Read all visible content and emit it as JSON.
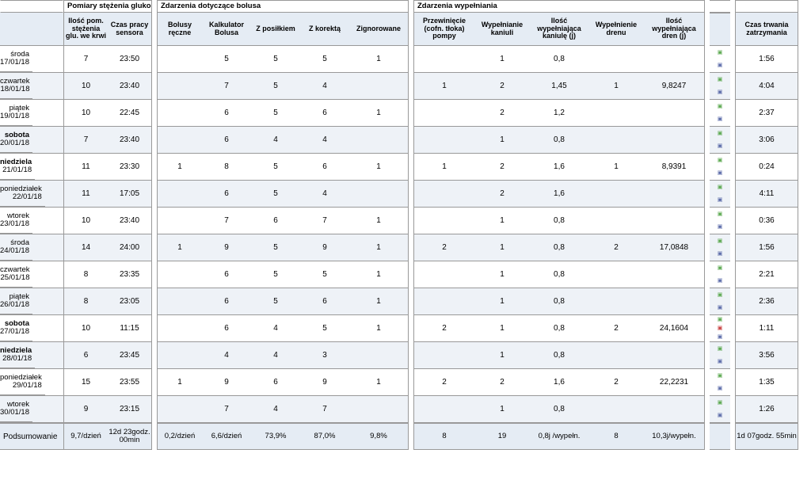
{
  "sections": {
    "glucose": {
      "title": "Pomiary stężenia glukozy",
      "cols": [
        {
          "key": "bgCount",
          "label": "Ilość pom. stężenia glu. we krwi",
          "w": 56
        },
        {
          "key": "sensor",
          "label": "Czas pracy sensora",
          "w": 56
        }
      ]
    },
    "bolus": {
      "title": "Zdarzenia dotyczące bolusa",
      "cols": [
        {
          "key": "manual",
          "label": "Bolusy ręczne",
          "w": 56
        },
        {
          "key": "calc",
          "label": "Kalkulator Bolusa",
          "w": 62
        },
        {
          "key": "meal",
          "label": "Z posiłkiem",
          "w": 62
        },
        {
          "key": "corr",
          "label": "Z korektą",
          "w": 62
        },
        {
          "key": "ign",
          "label": "Zignorowane",
          "w": 74
        }
      ]
    },
    "fill": {
      "title": "Zdarzenia wypełniania",
      "cols": [
        {
          "key": "rewind",
          "label": "Przewinięcie (cofn. tłoka) pompy",
          "w": 76
        },
        {
          "key": "can",
          "label": "Wypełnianie kaniuli",
          "w": 70
        },
        {
          "key": "canAmt",
          "label": "Ilość wypełniająca kaniulę (j)",
          "w": 74
        },
        {
          "key": "tube",
          "label": "Wypełnienie drenu",
          "w": 70
        },
        {
          "key": "tubeAmt",
          "label": "Ilość wypełniająca dren (j)",
          "w": 76
        }
      ]
    },
    "time": {
      "title": "",
      "cols": [
        {
          "key": "dur",
          "label": "Czas trwania zatrzymania",
          "w": 80
        }
      ]
    }
  },
  "rows": [
    {
      "dow": "środa",
      "date": "17/01/18",
      "bgCount": "7",
      "sensor": "23:50",
      "manual": "",
      "calc": "5",
      "meal": "5",
      "corr": "5",
      "ign": "1",
      "rewind": "",
      "can": "1",
      "canAmt": "0,8",
      "tube": "",
      "tubeAmt": "",
      "dur": "1:56",
      "icons": [
        "g",
        "b"
      ]
    },
    {
      "dow": "czwartek",
      "date": "18/01/18",
      "bgCount": "10",
      "sensor": "23:40",
      "manual": "",
      "calc": "7",
      "meal": "5",
      "corr": "4",
      "ign": "",
      "rewind": "1",
      "can": "2",
      "canAmt": "1,45",
      "tube": "1",
      "tubeAmt": "9,8247",
      "dur": "4:04",
      "icons": [
        "g",
        "b"
      ]
    },
    {
      "dow": "piątek",
      "date": "19/01/18",
      "bgCount": "10",
      "sensor": "22:45",
      "manual": "",
      "calc": "6",
      "meal": "5",
      "corr": "6",
      "ign": "1",
      "rewind": "",
      "can": "2",
      "canAmt": "1,2",
      "tube": "",
      "tubeAmt": "",
      "dur": "2:37",
      "icons": [
        "g",
        "b"
      ]
    },
    {
      "dow": "sobota",
      "date": "20/01/18",
      "bgCount": "7",
      "sensor": "23:40",
      "manual": "",
      "calc": "6",
      "meal": "4",
      "corr": "4",
      "ign": "",
      "rewind": "",
      "can": "1",
      "canAmt": "0,8",
      "tube": "",
      "tubeAmt": "",
      "dur": "3:06",
      "icons": [
        "g",
        "b"
      ],
      "bold": true
    },
    {
      "dow": "niedziela",
      "date": "21/01/18",
      "bgCount": "11",
      "sensor": "23:30",
      "manual": "1",
      "calc": "8",
      "meal": "5",
      "corr": "6",
      "ign": "1",
      "rewind": "1",
      "can": "2",
      "canAmt": "1,6",
      "tube": "1",
      "tubeAmt": "8,9391",
      "dur": "0:24",
      "icons": [
        "g",
        "b"
      ],
      "bold": true
    },
    {
      "dow": "poniedziałek",
      "date": "22/01/18",
      "bgCount": "11",
      "sensor": "17:05",
      "manual": "",
      "calc": "6",
      "meal": "5",
      "corr": "4",
      "ign": "",
      "rewind": "",
      "can": "2",
      "canAmt": "1,6",
      "tube": "",
      "tubeAmt": "",
      "dur": "4:11",
      "icons": [
        "g",
        "b"
      ]
    },
    {
      "dow": "wtorek",
      "date": "23/01/18",
      "bgCount": "10",
      "sensor": "23:40",
      "manual": "",
      "calc": "7",
      "meal": "6",
      "corr": "7",
      "ign": "1",
      "rewind": "",
      "can": "1",
      "canAmt": "0,8",
      "tube": "",
      "tubeAmt": "",
      "dur": "0:36",
      "icons": [
        "g",
        "b"
      ]
    },
    {
      "dow": "środa",
      "date": "24/01/18",
      "bgCount": "14",
      "sensor": "24:00",
      "manual": "1",
      "calc": "9",
      "meal": "5",
      "corr": "9",
      "ign": "1",
      "rewind": "2",
      "can": "1",
      "canAmt": "0,8",
      "tube": "2",
      "tubeAmt": "17,0848",
      "dur": "1:56",
      "icons": [
        "g",
        "b"
      ]
    },
    {
      "dow": "czwartek",
      "date": "25/01/18",
      "bgCount": "8",
      "sensor": "23:35",
      "manual": "",
      "calc": "6",
      "meal": "5",
      "corr": "5",
      "ign": "1",
      "rewind": "",
      "can": "1",
      "canAmt": "0,8",
      "tube": "",
      "tubeAmt": "",
      "dur": "2:21",
      "icons": [
        "g",
        "b"
      ]
    },
    {
      "dow": "piątek",
      "date": "26/01/18",
      "bgCount": "8",
      "sensor": "23:05",
      "manual": "",
      "calc": "6",
      "meal": "5",
      "corr": "6",
      "ign": "1",
      "rewind": "",
      "can": "1",
      "canAmt": "0,8",
      "tube": "",
      "tubeAmt": "",
      "dur": "2:36",
      "icons": [
        "g",
        "b"
      ]
    },
    {
      "dow": "sobota",
      "date": "27/01/18",
      "bgCount": "10",
      "sensor": "11:15",
      "manual": "",
      "calc": "6",
      "meal": "4",
      "corr": "5",
      "ign": "1",
      "rewind": "2",
      "can": "1",
      "canAmt": "0,8",
      "tube": "2",
      "tubeAmt": "24,1604",
      "dur": "1:11",
      "icons": [
        "g",
        "r",
        "b"
      ],
      "bold": true
    },
    {
      "dow": "niedziela",
      "date": "28/01/18",
      "bgCount": "6",
      "sensor": "23:45",
      "manual": "",
      "calc": "4",
      "meal": "4",
      "corr": "3",
      "ign": "",
      "rewind": "",
      "can": "1",
      "canAmt": "0,8",
      "tube": "",
      "tubeAmt": "",
      "dur": "3:56",
      "icons": [
        "g",
        "b"
      ],
      "bold": true
    },
    {
      "dow": "poniedziałek",
      "date": "29/01/18",
      "bgCount": "15",
      "sensor": "23:55",
      "manual": "1",
      "calc": "9",
      "meal": "6",
      "corr": "9",
      "ign": "1",
      "rewind": "2",
      "can": "2",
      "canAmt": "1,6",
      "tube": "2",
      "tubeAmt": "22,2231",
      "dur": "1:35",
      "icons": [
        "g",
        "b"
      ]
    },
    {
      "dow": "wtorek",
      "date": "30/01/18",
      "bgCount": "9",
      "sensor": "23:15",
      "manual": "",
      "calc": "7",
      "meal": "4",
      "corr": "7",
      "ign": "",
      "rewind": "",
      "can": "1",
      "canAmt": "0,8",
      "tube": "",
      "tubeAmt": "",
      "dur": "1:26",
      "icons": [
        "g",
        "b"
      ]
    }
  ],
  "summary": {
    "label": "Podsumowanie",
    "bgCount": "9,7/dzień",
    "sensor": "12d 23godz. 00min",
    "manual": "0,2/dzień",
    "calc": "6,6/dzień",
    "meal": "73,9%",
    "corr": "87,0%",
    "ign": "9,8%",
    "rewind": "8",
    "can": "19",
    "canAmt": "0,8j /wypełn.",
    "tube": "8",
    "tubeAmt": "10,3j/wypełn.",
    "dur": "1d 07godz. 55min"
  }
}
